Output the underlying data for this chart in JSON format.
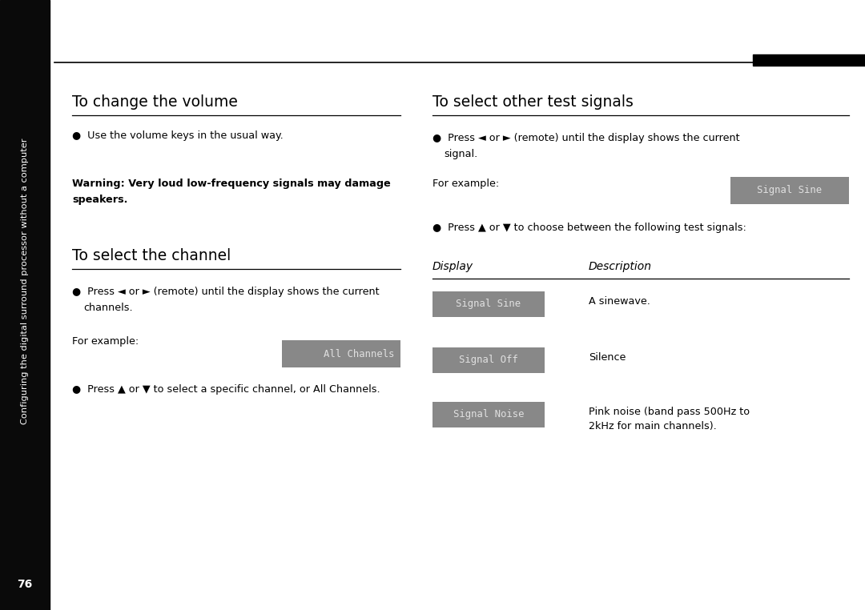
{
  "bg_color": "#ffffff",
  "sidebar_color": "#0a0a0a",
  "sidebar_text": "Configuring the digital surround processor without a computer",
  "page_number": "76",
  "section1_title": "To change the volume",
  "section1_bullet1": "●  Use the volume keys in the usual way.",
  "section1_warning_line1": "Warning: Very loud low-frequency signals may damage",
  "section1_warning_line2": "speakers.",
  "section2_title": "To select the channel",
  "section2_bullet1_line1": "●  Press ◄ or ► (remote) until the display shows the current",
  "section2_bullet1_line2": "   channels.",
  "section2_for_example": "For example:",
  "section2_display_box": "All Channels",
  "section2_bullet2": "●  Press ▲ or ▼ to select a specific channel, or All Channels.",
  "section3_title": "To select other test signals",
  "section3_bullet1_line1": "●  Press ◄ or ► (remote) until the display shows the current",
  "section3_bullet1_line2": "   signal.",
  "section3_for_example": "For example:",
  "section3_display_box_example": "Signal Sine",
  "section3_bullet2": "●  Press ▲ or ▼ to choose between the following test signals:",
  "table_col1_header": "Display",
  "table_col2_header": "Description",
  "table_rows": [
    {
      "display": "Signal Sine",
      "description_line1": "A sinewave.",
      "description_line2": ""
    },
    {
      "display": "Signal Off",
      "description_line1": "Silence",
      "description_line2": ""
    },
    {
      "display": "Signal Noise",
      "description_line1": "Pink noise (band pass 500Hz to",
      "description_line2": "2kHz for main channels)."
    }
  ],
  "display_box_bg": "#888888",
  "display_box_text_color": "#e0e0e0",
  "display_box_font": "monospace",
  "title_fontsize": 13.5,
  "body_fontsize": 9.2,
  "warning_fontsize": 9.2,
  "sidebar_fontsize": 8.2,
  "table_header_fontsize": 10,
  "display_fontsize": 8.8
}
